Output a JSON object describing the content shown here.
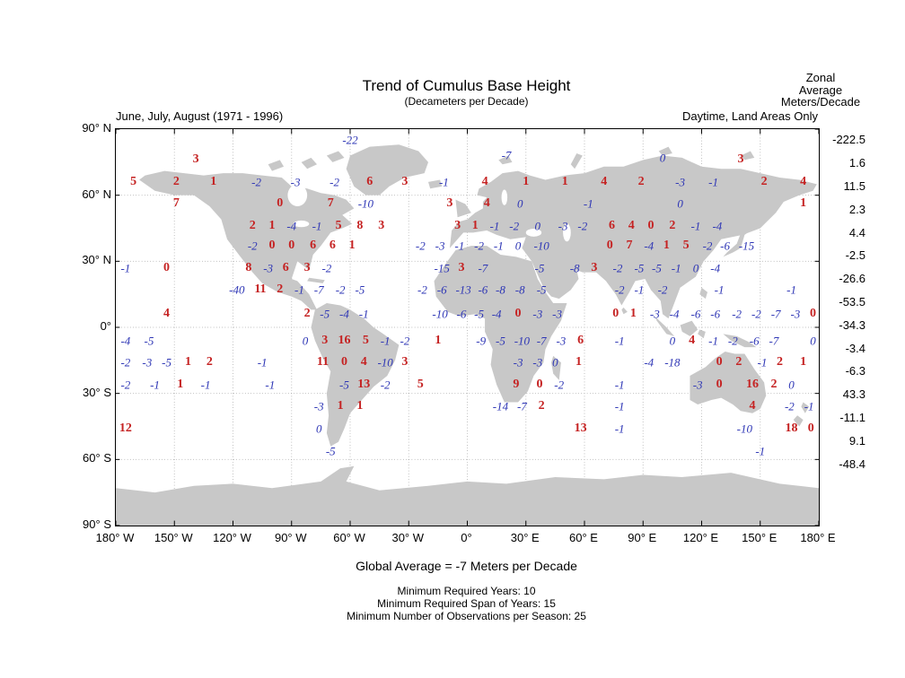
{
  "header": {
    "title": "Trend of Cumulus Base Height",
    "subtitle": "(Decameters per Decade)",
    "left": "June, July, August (1971 - 1996)",
    "right": "Daytime, Land Areas Only",
    "zonal_label_lines": [
      "Zonal",
      "Average",
      "Meters/Decade"
    ]
  },
  "footer": {
    "global_average": "Global Average = -7 Meters per Decade",
    "notes": [
      "Minimum Required Years: 10",
      "Minimum Required Span of Years: 15",
      "Minimum Number of Observations per Season: 25"
    ]
  },
  "axes": {
    "y_ticks": [
      {
        "label": "90° N",
        "lat": 90
      },
      {
        "label": "60° N",
        "lat": 60
      },
      {
        "label": "30° N",
        "lat": 30
      },
      {
        "label": "0°",
        "lat": 0
      },
      {
        "label": "30° S",
        "lat": -30
      },
      {
        "label": "60° S",
        "lat": -60
      },
      {
        "label": "90° S",
        "lat": -90
      }
    ],
    "x_ticks": [
      {
        "label": "180° W",
        "lon": -180
      },
      {
        "label": "150° W",
        "lon": -150
      },
      {
        "label": "120° W",
        "lon": -120
      },
      {
        "label": "90° W",
        "lon": -90
      },
      {
        "label": "60° W",
        "lon": -60
      },
      {
        "label": "30° W",
        "lon": -30
      },
      {
        "label": "0°",
        "lon": 0
      },
      {
        "label": "30° E",
        "lon": 30
      },
      {
        "label": "60° E",
        "lon": 60
      },
      {
        "label": "90° E",
        "lon": 90
      },
      {
        "label": "120° E",
        "lon": 120
      },
      {
        "label": "150° E",
        "lon": 150
      },
      {
        "label": "180° E",
        "lon": 180
      }
    ]
  },
  "zonal_average": {
    "values": [
      "-222.5",
      "1.6",
      "11.5",
      "2.3",
      "4.4",
      "-2.5",
      "-26.6",
      "-53.5",
      "-34.3",
      "-3.4",
      "-6.3",
      "43.3",
      "-11.1",
      "9.1",
      "-48.4"
    ]
  },
  "chart_data": {
    "type": "scatter",
    "projection": "equirectangular",
    "title": "Trend of Cumulus Base Height (Decameters per Decade)",
    "season": "June, July, August (1971 - 1996)",
    "scope": "Daytime, Land Areas Only",
    "global_average_m_per_decade": -7,
    "lon_range": [
      -180,
      180
    ],
    "lat_range": [
      -90,
      90
    ],
    "grid": true,
    "colors": {
      "positive": "#c52222",
      "negative": "#2d35b5",
      "land": "#c8c8c8"
    },
    "zonal_average_m_per_decade": [
      -222.5,
      1.6,
      11.5,
      2.3,
      4.4,
      -2.5,
      -26.6,
      -53.5,
      -34.3,
      -3.4,
      -6.3,
      43.3,
      -11.1,
      9.1,
      -48.4
    ],
    "points": [
      [
        -60,
        85,
        "-22",
        "b"
      ],
      [
        -139,
        76,
        "3",
        "r"
      ],
      [
        20,
        78,
        "-7",
        "b"
      ],
      [
        100,
        77,
        "0",
        "b"
      ],
      [
        140,
        76,
        "3",
        "r"
      ],
      [
        -171,
        66,
        "5",
        "r"
      ],
      [
        -149,
        66,
        "2",
        "r"
      ],
      [
        -130,
        66,
        "1",
        "r"
      ],
      [
        -108,
        66,
        "-2",
        "b"
      ],
      [
        -88,
        66,
        "-3",
        "b"
      ],
      [
        -68,
        66,
        "-2",
        "b"
      ],
      [
        -50,
        66,
        "6",
        "r"
      ],
      [
        -32,
        66,
        "3",
        "r"
      ],
      [
        -12,
        66,
        "-1",
        "b"
      ],
      [
        9,
        66,
        "4",
        "r"
      ],
      [
        30,
        66,
        "1",
        "r"
      ],
      [
        50,
        66,
        "1",
        "r"
      ],
      [
        70,
        66,
        "4",
        "r"
      ],
      [
        89,
        66,
        "2",
        "r"
      ],
      [
        109,
        66,
        "-3",
        "b"
      ],
      [
        126,
        66,
        "-1",
        "b"
      ],
      [
        152,
        66,
        "2",
        "r"
      ],
      [
        172,
        66,
        "4",
        "r"
      ],
      [
        -149,
        56,
        "7",
        "r"
      ],
      [
        -96,
        56,
        "0",
        "r"
      ],
      [
        -70,
        56,
        "7",
        "r"
      ],
      [
        -52,
        56,
        "-10",
        "b"
      ],
      [
        -9,
        56,
        "3",
        "r"
      ],
      [
        10,
        56,
        "4",
        "r"
      ],
      [
        27,
        56,
        "0",
        "b"
      ],
      [
        62,
        56,
        "-1",
        "b"
      ],
      [
        109,
        56,
        "0",
        "b"
      ],
      [
        172,
        56,
        "1",
        "r"
      ],
      [
        -110,
        46,
        "2",
        "r"
      ],
      [
        -100,
        46,
        "1",
        "r"
      ],
      [
        -90,
        46,
        "-4",
        "b"
      ],
      [
        -77,
        46,
        "-1",
        "b"
      ],
      [
        -66,
        46,
        "5",
        "r"
      ],
      [
        -55,
        46,
        "8",
        "r"
      ],
      [
        -44,
        46,
        "3",
        "r"
      ],
      [
        -5,
        46,
        "3",
        "r"
      ],
      [
        4,
        46,
        "1",
        "r"
      ],
      [
        14,
        46,
        "-1",
        "b"
      ],
      [
        24,
        46,
        "-2",
        "b"
      ],
      [
        36,
        46,
        "0",
        "b"
      ],
      [
        49,
        46,
        "-3",
        "b"
      ],
      [
        59,
        46,
        "-2",
        "b"
      ],
      [
        74,
        46,
        "6",
        "r"
      ],
      [
        84,
        46,
        "4",
        "r"
      ],
      [
        94,
        46,
        "0",
        "r"
      ],
      [
        105,
        46,
        "2",
        "r"
      ],
      [
        117,
        46,
        "-1",
        "b"
      ],
      [
        128,
        46,
        "-4",
        "b"
      ],
      [
        -110,
        37,
        "-2",
        "b"
      ],
      [
        -100,
        37,
        "0",
        "r"
      ],
      [
        -90,
        37,
        "0",
        "r"
      ],
      [
        -79,
        37,
        "6",
        "r"
      ],
      [
        -69,
        37,
        "6",
        "r"
      ],
      [
        -59,
        37,
        "1",
        "r"
      ],
      [
        -24,
        37,
        "-2",
        "b"
      ],
      [
        -14,
        37,
        "-3",
        "b"
      ],
      [
        -4,
        37,
        "-1",
        "b"
      ],
      [
        6,
        37,
        "-2",
        "b"
      ],
      [
        16,
        37,
        "-1",
        "b"
      ],
      [
        26,
        37,
        "0",
        "b"
      ],
      [
        38,
        37,
        "-10",
        "b"
      ],
      [
        73,
        37,
        "0",
        "r"
      ],
      [
        83,
        37,
        "7",
        "r"
      ],
      [
        93,
        37,
        "-4",
        "b"
      ],
      [
        102,
        37,
        "1",
        "r"
      ],
      [
        112,
        37,
        "5",
        "r"
      ],
      [
        123,
        37,
        "-2",
        "b"
      ],
      [
        132,
        37,
        "-6",
        "b"
      ],
      [
        143,
        37,
        "-15",
        "b"
      ],
      [
        -175,
        27,
        "-1",
        "b"
      ],
      [
        -154,
        27,
        "0",
        "r"
      ],
      [
        -112,
        27,
        "8",
        "r"
      ],
      [
        -102,
        27,
        "-3",
        "b"
      ],
      [
        -93,
        27,
        "6",
        "r"
      ],
      [
        -82,
        27,
        "3",
        "r"
      ],
      [
        -72,
        27,
        "-2",
        "b"
      ],
      [
        -13,
        27,
        "-15",
        "b"
      ],
      [
        -3,
        27,
        "3",
        "r"
      ],
      [
        8,
        27,
        "-7",
        "b"
      ],
      [
        37,
        27,
        "-5",
        "b"
      ],
      [
        55,
        27,
        "-8",
        "b"
      ],
      [
        65,
        27,
        "3",
        "r"
      ],
      [
        77,
        27,
        "-2",
        "b"
      ],
      [
        88,
        27,
        "-5",
        "b"
      ],
      [
        97,
        27,
        "-5",
        "b"
      ],
      [
        107,
        27,
        "-1",
        "b"
      ],
      [
        117,
        27,
        "0",
        "b"
      ],
      [
        127,
        27,
        "-4",
        "b"
      ],
      [
        -118,
        17,
        "-40",
        "b"
      ],
      [
        -106,
        17,
        "11",
        "r"
      ],
      [
        -96,
        17,
        "2",
        "r"
      ],
      [
        -86,
        17,
        "-1",
        "b"
      ],
      [
        -76,
        17,
        "-7",
        "b"
      ],
      [
        -65,
        17,
        "-2",
        "b"
      ],
      [
        -55,
        17,
        "-5",
        "b"
      ],
      [
        -23,
        17,
        "-2",
        "b"
      ],
      [
        -13,
        17,
        "-6",
        "b"
      ],
      [
        -2,
        17,
        "-13",
        "b"
      ],
      [
        8,
        17,
        "-6",
        "b"
      ],
      [
        17,
        17,
        "-8",
        "b"
      ],
      [
        27,
        17,
        "-8",
        "b"
      ],
      [
        38,
        17,
        "-5",
        "b"
      ],
      [
        78,
        17,
        "-2",
        "b"
      ],
      [
        88,
        17,
        "-1",
        "b"
      ],
      [
        100,
        17,
        "-2",
        "b"
      ],
      [
        129,
        17,
        "-1",
        "b"
      ],
      [
        166,
        17,
        "-1",
        "b"
      ],
      [
        -154,
        6,
        "4",
        "r"
      ],
      [
        -82,
        6,
        "2",
        "r"
      ],
      [
        -73,
        6,
        "-5",
        "b"
      ],
      [
        -63,
        6,
        "-4",
        "b"
      ],
      [
        -53,
        6,
        "-1",
        "b"
      ],
      [
        -14,
        6,
        "-10",
        "b"
      ],
      [
        -3,
        6,
        "-6",
        "b"
      ],
      [
        6,
        6,
        "-5",
        "b"
      ],
      [
        15,
        6,
        "-4",
        "b"
      ],
      [
        26,
        6,
        "0",
        "r"
      ],
      [
        36,
        6,
        "-3",
        "b"
      ],
      [
        46,
        6,
        "-3",
        "b"
      ],
      [
        76,
        6,
        "0",
        "r"
      ],
      [
        85,
        6,
        "1",
        "r"
      ],
      [
        96,
        6,
        "-3",
        "b"
      ],
      [
        106,
        6,
        "-4",
        "b"
      ],
      [
        117,
        6,
        "-6",
        "b"
      ],
      [
        127,
        6,
        "-6",
        "b"
      ],
      [
        138,
        6,
        "-2",
        "b"
      ],
      [
        148,
        6,
        "-2",
        "b"
      ],
      [
        158,
        6,
        "-7",
        "b"
      ],
      [
        168,
        6,
        "-3",
        "b"
      ],
      [
        177,
        6,
        "0",
        "r"
      ],
      [
        -175,
        -6,
        "-4",
        "b"
      ],
      [
        -163,
        -6,
        "-5",
        "b"
      ],
      [
        -83,
        -6,
        "0",
        "b"
      ],
      [
        -73,
        -6,
        "3",
        "r"
      ],
      [
        -63,
        -6,
        "16",
        "r"
      ],
      [
        -52,
        -6,
        "5",
        "r"
      ],
      [
        -42,
        -6,
        "-1",
        "b"
      ],
      [
        -32,
        -6,
        "-2",
        "b"
      ],
      [
        -15,
        -6,
        "1",
        "r"
      ],
      [
        7,
        -6,
        "-9",
        "b"
      ],
      [
        17,
        -6,
        "-5",
        "b"
      ],
      [
        28,
        -6,
        "-10",
        "b"
      ],
      [
        38,
        -6,
        "-7",
        "b"
      ],
      [
        48,
        -6,
        "-3",
        "b"
      ],
      [
        58,
        -6,
        "6",
        "r"
      ],
      [
        78,
        -6,
        "-1",
        "b"
      ],
      [
        105,
        -6,
        "0",
        "b"
      ],
      [
        115,
        -6,
        "4",
        "r"
      ],
      [
        126,
        -6,
        "-1",
        "b"
      ],
      [
        136,
        -6,
        "-2",
        "b"
      ],
      [
        147,
        -6,
        "-6",
        "b"
      ],
      [
        157,
        -6,
        "-7",
        "b"
      ],
      [
        177,
        -6,
        "0",
        "b"
      ],
      [
        -175,
        -16,
        "-2",
        "b"
      ],
      [
        -164,
        -16,
        "-3",
        "b"
      ],
      [
        -154,
        -16,
        "-5",
        "b"
      ],
      [
        -143,
        -16,
        "1",
        "r"
      ],
      [
        -132,
        -16,
        "2",
        "r"
      ],
      [
        -105,
        -16,
        "-1",
        "b"
      ],
      [
        -74,
        -16,
        "11",
        "r"
      ],
      [
        -63,
        -16,
        "0",
        "r"
      ],
      [
        -53,
        -16,
        "4",
        "r"
      ],
      [
        -42,
        -16,
        "-10",
        "b"
      ],
      [
        -32,
        -16,
        "3",
        "r"
      ],
      [
        26,
        -16,
        "-3",
        "b"
      ],
      [
        36,
        -16,
        "-3",
        "b"
      ],
      [
        45,
        -16,
        "0",
        "b"
      ],
      [
        57,
        -16,
        "1",
        "r"
      ],
      [
        93,
        -16,
        "-4",
        "b"
      ],
      [
        105,
        -16,
        "-18",
        "b"
      ],
      [
        129,
        -16,
        "0",
        "r"
      ],
      [
        139,
        -16,
        "2",
        "r"
      ],
      [
        151,
        -16,
        "-1",
        "b"
      ],
      [
        160,
        -16,
        "2",
        "r"
      ],
      [
        172,
        -16,
        "1",
        "r"
      ],
      [
        -175,
        -26,
        "-2",
        "b"
      ],
      [
        -160,
        -26,
        "-1",
        "b"
      ],
      [
        -147,
        -26,
        "1",
        "r"
      ],
      [
        -134,
        -26,
        "-1",
        "b"
      ],
      [
        -101,
        -26,
        "-1",
        "b"
      ],
      [
        -63,
        -26,
        "-5",
        "b"
      ],
      [
        -53,
        -26,
        "13",
        "r"
      ],
      [
        -42,
        -26,
        "-2",
        "b"
      ],
      [
        -24,
        -26,
        "5",
        "r"
      ],
      [
        25,
        -26,
        "9",
        "r"
      ],
      [
        37,
        -26,
        "0",
        "r"
      ],
      [
        47,
        -26,
        "-2",
        "b"
      ],
      [
        78,
        -26,
        "-1",
        "b"
      ],
      [
        118,
        -26,
        "-3",
        "b"
      ],
      [
        129,
        -26,
        "0",
        "r"
      ],
      [
        146,
        -26,
        "16",
        "r"
      ],
      [
        157,
        -26,
        "2",
        "r"
      ],
      [
        166,
        -26,
        "0",
        "b"
      ],
      [
        -76,
        -36,
        "-3",
        "b"
      ],
      [
        -65,
        -36,
        "1",
        "r"
      ],
      [
        -55,
        -36,
        "1",
        "r"
      ],
      [
        17,
        -36,
        "-14",
        "b"
      ],
      [
        28,
        -36,
        "-7",
        "b"
      ],
      [
        38,
        -36,
        "2",
        "r"
      ],
      [
        78,
        -36,
        "-1",
        "b"
      ],
      [
        146,
        -36,
        "4",
        "r"
      ],
      [
        165,
        -36,
        "-2",
        "b"
      ],
      [
        175,
        -36,
        "-1",
        "b"
      ],
      [
        -175,
        -46,
        "12",
        "r"
      ],
      [
        -76,
        -46,
        "0",
        "b"
      ],
      [
        58,
        -46,
        "13",
        "r"
      ],
      [
        78,
        -46,
        "-1",
        "b"
      ],
      [
        142,
        -46,
        "-10",
        "b"
      ],
      [
        166,
        -46,
        "18",
        "r"
      ],
      [
        176,
        -46,
        "0",
        "r"
      ],
      [
        -70,
        -56,
        "-5",
        "b"
      ],
      [
        150,
        -56,
        "-1",
        "b"
      ]
    ]
  }
}
